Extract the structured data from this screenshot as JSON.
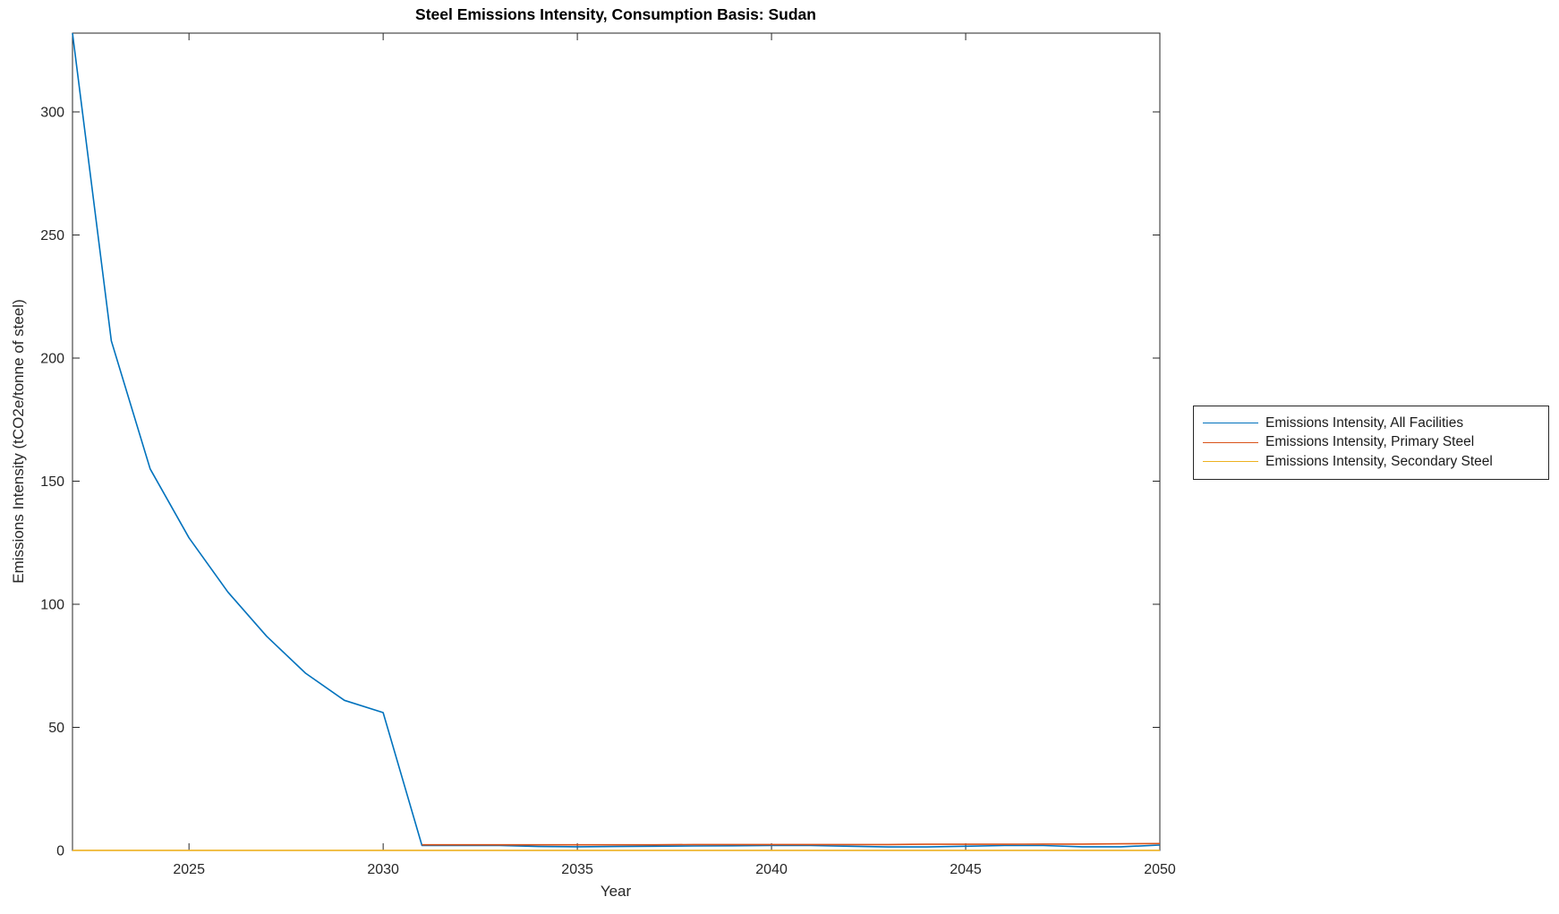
{
  "figure": {
    "background": "#ffffff",
    "axis_color": "#262626"
  },
  "chart_data": {
    "type": "line",
    "title": "Steel Emissions Intensity, Consumption Basis: Sudan",
    "xlabel": "Year",
    "ylabel": "Emissions Intensity (tCO2e/tonne of steel)",
    "xlim": [
      2022,
      2050
    ],
    "ylim": [
      0,
      332
    ],
    "xticks": [
      2025,
      2030,
      2035,
      2040,
      2045,
      2050
    ],
    "yticks": [
      0,
      50,
      100,
      150,
      200,
      250,
      300
    ],
    "grid": false,
    "legend_position": "right-outside",
    "x": [
      2022,
      2023,
      2024,
      2025,
      2026,
      2027,
      2028,
      2029,
      2030,
      2031,
      2032,
      2033,
      2034,
      2035,
      2036,
      2037,
      2038,
      2039,
      2040,
      2041,
      2042,
      2043,
      2044,
      2045,
      2046,
      2047,
      2048,
      2049,
      2050
    ],
    "series": [
      {
        "name": "Emissions Intensity, All Facilities",
        "color": "#0072BD",
        "values": [
          332,
          207,
          155,
          127,
          105,
          87,
          72,
          61,
          56,
          2.0,
          2.0,
          2.0,
          1.6,
          1.5,
          1.6,
          1.7,
          1.8,
          1.9,
          2.0,
          2.0,
          1.7,
          1.4,
          1.4,
          1.7,
          2.0,
          2.0,
          1.5,
          1.5,
          2.2
        ]
      },
      {
        "name": "Emissions Intensity, Primary Steel",
        "color": "#D95319",
        "values": [
          null,
          null,
          null,
          null,
          null,
          null,
          null,
          null,
          null,
          2.3,
          2.3,
          2.3,
          2.3,
          2.3,
          2.3,
          2.3,
          2.4,
          2.4,
          2.4,
          2.4,
          2.4,
          2.4,
          2.5,
          2.5,
          2.5,
          2.6,
          2.6,
          2.7,
          2.8
        ]
      },
      {
        "name": "Emissions Intensity, Secondary Steel",
        "color": "#EDB120",
        "values": [
          0.05,
          0.05,
          0.05,
          0.05,
          0.05,
          0.05,
          0.05,
          0.05,
          0.05,
          0.05,
          0.05,
          0.05,
          0.05,
          0.05,
          0.05,
          0.05,
          0.05,
          0.05,
          0.05,
          0.05,
          0.05,
          0.05,
          0.05,
          0.05,
          0.05,
          0.05,
          0.05,
          0.05,
          0.05
        ]
      }
    ]
  }
}
